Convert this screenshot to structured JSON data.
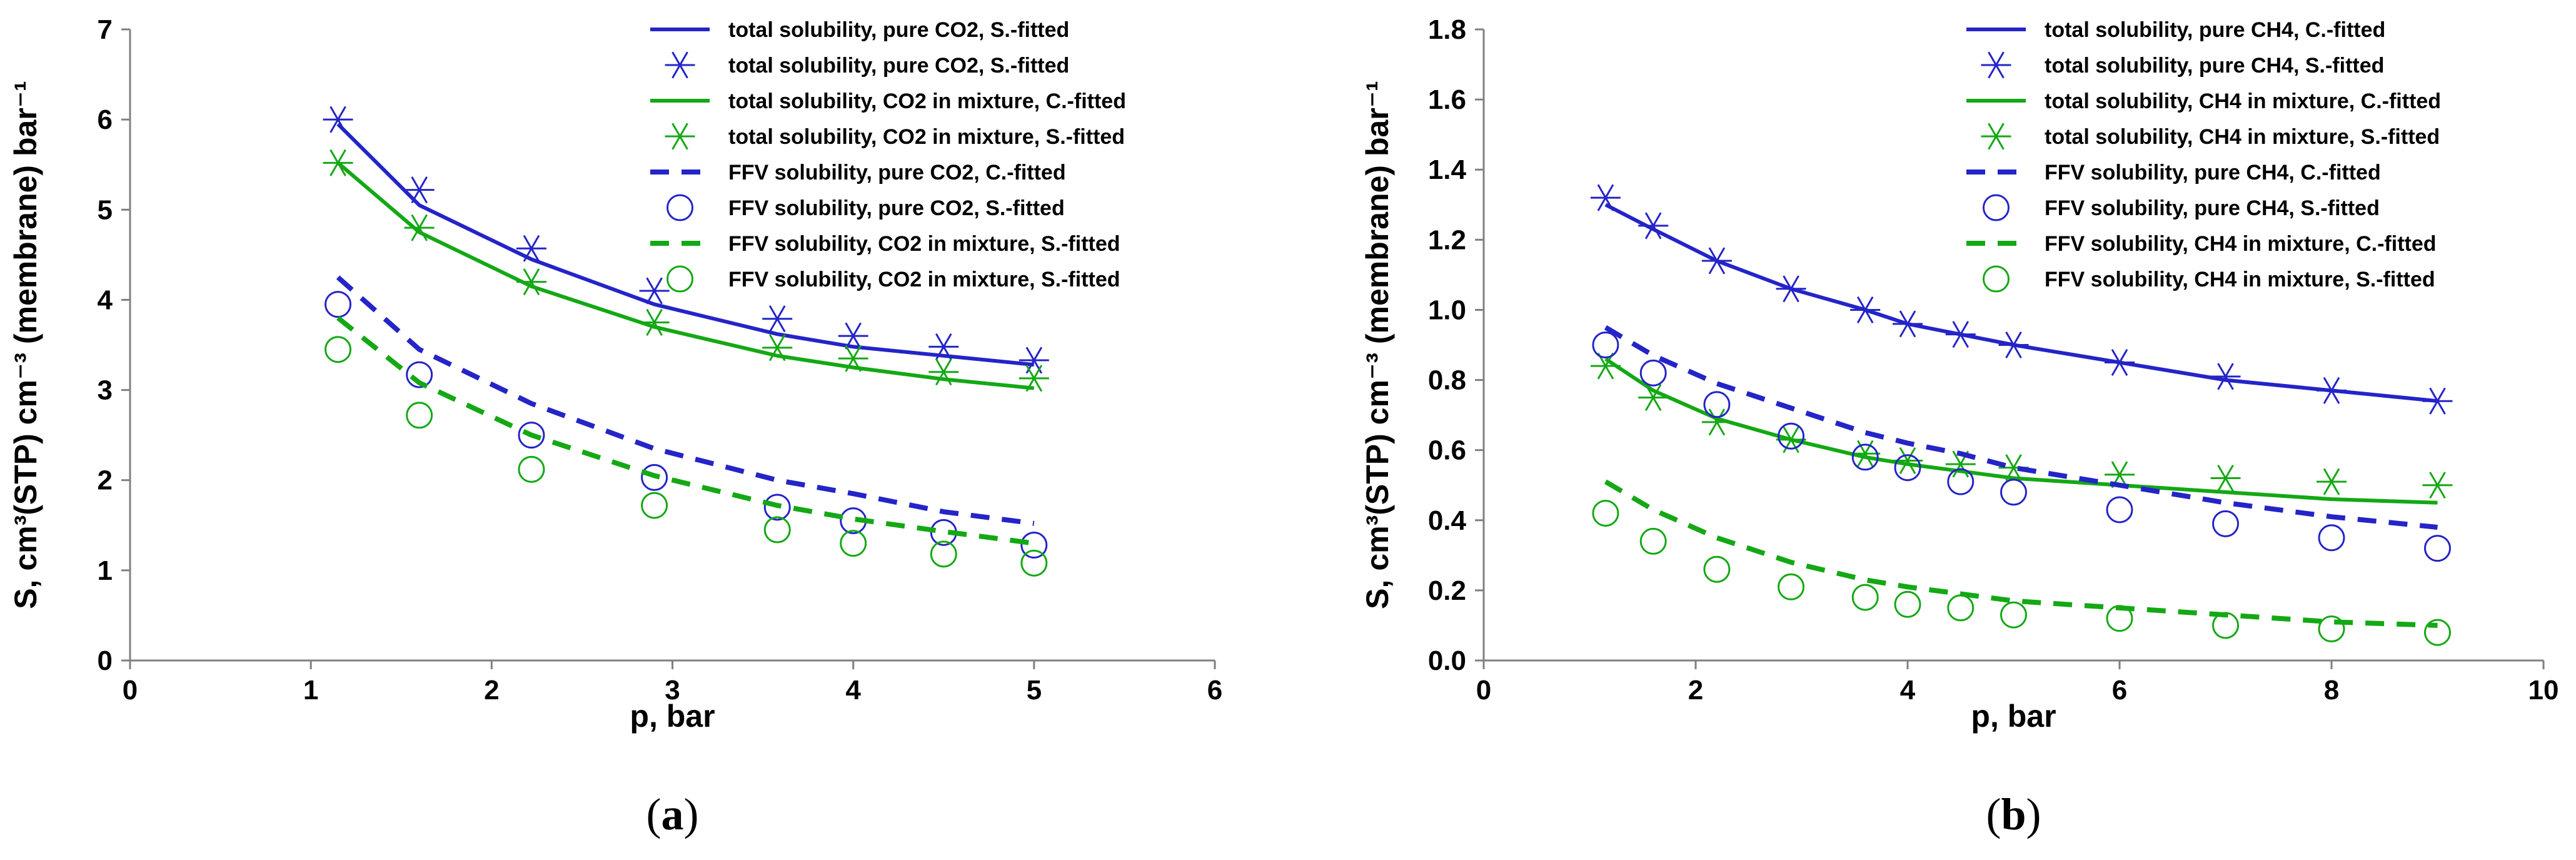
{
  "colors": {
    "blue": "#2424c8",
    "green": "#14a814",
    "axis": "#808080"
  },
  "chart_data": [
    {
      "type": "scatter",
      "panel_label": "(a)",
      "panel_letter": "a",
      "xlabel": "p, bar",
      "ylabel": "S, cm³(STP) cm⁻³ (membrane) bar⁻¹",
      "xlim": [
        0,
        6
      ],
      "ylim": [
        0,
        7
      ],
      "xticks": [
        0,
        1,
        2,
        3,
        4,
        5,
        6
      ],
      "yticks": [
        0,
        1,
        2,
        3,
        4,
        5,
        6,
        7
      ],
      "ytick_labels": [
        "0",
        "1",
        "2",
        "3",
        "4",
        "5",
        "6",
        "7"
      ],
      "legend_position": "top-right",
      "series": [
        {
          "name": "total solubility, pure CO2, S.-fitted",
          "kind": "line",
          "style": "solid",
          "color": "blue",
          "x": [
            1.15,
            1.6,
            2.22,
            2.9,
            3.58,
            4.0,
            4.5,
            5.0
          ],
          "y": [
            5.95,
            5.05,
            4.45,
            3.95,
            3.62,
            3.48,
            3.38,
            3.28
          ]
        },
        {
          "name": "total solubility, pure CO2, S.-fitted",
          "kind": "marker",
          "marker": "asterisk",
          "color": "blue",
          "x": [
            1.15,
            1.6,
            2.22,
            2.9,
            3.58,
            4.0,
            4.5,
            5.0
          ],
          "y": [
            6.0,
            5.22,
            4.57,
            4.1,
            3.79,
            3.6,
            3.48,
            3.33
          ]
        },
        {
          "name": "total solubility, CO2 in mixture, C.-fitted",
          "kind": "line",
          "style": "solid",
          "color": "green",
          "x": [
            1.15,
            1.6,
            2.22,
            2.9,
            3.58,
            4.0,
            4.5,
            5.0
          ],
          "y": [
            5.52,
            4.75,
            4.15,
            3.7,
            3.38,
            3.25,
            3.12,
            3.02
          ]
        },
        {
          "name": "total solubility, CO2 in mixture, S.-fitted",
          "kind": "marker",
          "marker": "asterisk",
          "color": "green",
          "x": [
            1.15,
            1.6,
            2.22,
            2.9,
            3.58,
            4.0,
            4.5,
            5.0
          ],
          "y": [
            5.52,
            4.8,
            4.2,
            3.75,
            3.47,
            3.35,
            3.2,
            3.13
          ]
        },
        {
          "name": "FFV solubility, pure CO2, C.-fitted",
          "kind": "line",
          "style": "dashed",
          "color": "blue",
          "x": [
            1.15,
            1.6,
            2.22,
            2.9,
            3.58,
            4.0,
            4.5,
            5.0
          ],
          "y": [
            4.25,
            3.45,
            2.85,
            2.35,
            2.0,
            1.85,
            1.65,
            1.52
          ]
        },
        {
          "name": "FFV solubility, pure CO2, S.-fitted",
          "kind": "marker",
          "marker": "circle",
          "color": "blue",
          "x": [
            1.15,
            1.6,
            2.22,
            2.9,
            3.58,
            4.0,
            4.5,
            5.0
          ],
          "y": [
            3.95,
            3.17,
            2.5,
            2.03,
            1.7,
            1.55,
            1.42,
            1.28
          ]
        },
        {
          "name": "FFV solubility, CO2 in mixture, S.-fitted",
          "kind": "line",
          "style": "dashed",
          "color": "green",
          "x": [
            1.15,
            1.6,
            2.22,
            2.9,
            3.58,
            4.0,
            4.5,
            5.0
          ],
          "y": [
            3.8,
            3.08,
            2.5,
            2.05,
            1.72,
            1.57,
            1.43,
            1.3
          ]
        },
        {
          "name": "FFV solubility, CO2 in mixture, S.-fitted",
          "kind": "marker",
          "marker": "circle",
          "color": "green",
          "x": [
            1.15,
            1.6,
            2.22,
            2.9,
            3.58,
            4.0,
            4.5,
            5.0
          ],
          "y": [
            3.45,
            2.72,
            2.12,
            1.72,
            1.45,
            1.3,
            1.18,
            1.08
          ]
        }
      ]
    },
    {
      "type": "scatter",
      "panel_label": "(b)",
      "panel_letter": "b",
      "xlabel": "p, bar",
      "ylabel": "S, cm³(STP) cm⁻³ (membrane) bar⁻¹",
      "xlim": [
        0,
        10
      ],
      "ylim": [
        0,
        1.8
      ],
      "xticks": [
        0,
        2,
        4,
        6,
        8,
        10
      ],
      "yticks": [
        0,
        0.2,
        0.4,
        0.6,
        0.8,
        1.0,
        1.2,
        1.4,
        1.6,
        1.8
      ],
      "ytick_labels": [
        "0.0",
        "0.2",
        "0.4",
        "0.6",
        "0.8",
        "1.0",
        "1.2",
        "1.4",
        "1.6",
        "1.8"
      ],
      "legend_position": "top-right",
      "series": [
        {
          "name": "total solubility, pure CH4, C.-fitted",
          "kind": "line",
          "style": "solid",
          "color": "blue",
          "x": [
            1.15,
            1.6,
            2.2,
            2.9,
            3.6,
            4.0,
            4.5,
            5.0,
            6.0,
            7.0,
            8.0,
            9.0
          ],
          "y": [
            1.3,
            1.23,
            1.14,
            1.06,
            1.0,
            0.96,
            0.93,
            0.9,
            0.85,
            0.8,
            0.77,
            0.74
          ]
        },
        {
          "name": "total solubility, pure CH4, S.-fitted",
          "kind": "marker",
          "marker": "asterisk",
          "color": "blue",
          "x": [
            1.15,
            1.6,
            2.2,
            2.9,
            3.6,
            4.0,
            4.5,
            5.0,
            6.0,
            7.0,
            8.0,
            9.0
          ],
          "y": [
            1.32,
            1.24,
            1.14,
            1.06,
            1.0,
            0.96,
            0.93,
            0.9,
            0.85,
            0.81,
            0.77,
            0.74
          ]
        },
        {
          "name": "total solubility, CH4 in mixture, C.-fitted",
          "kind": "line",
          "style": "solid",
          "color": "green",
          "x": [
            1.15,
            1.6,
            2.2,
            2.9,
            3.6,
            4.0,
            4.5,
            5.0,
            6.0,
            7.0,
            8.0,
            9.0
          ],
          "y": [
            0.86,
            0.77,
            0.69,
            0.63,
            0.58,
            0.56,
            0.54,
            0.52,
            0.5,
            0.48,
            0.46,
            0.45
          ]
        },
        {
          "name": "total solubility, CH4 in mixture, S.-fitted",
          "kind": "marker",
          "marker": "asterisk",
          "color": "green",
          "x": [
            1.15,
            1.6,
            2.2,
            2.9,
            3.6,
            4.0,
            4.5,
            5.0,
            6.0,
            7.0,
            8.0,
            9.0
          ],
          "y": [
            0.84,
            0.75,
            0.68,
            0.63,
            0.59,
            0.57,
            0.56,
            0.55,
            0.53,
            0.52,
            0.51,
            0.5
          ]
        },
        {
          "name": "FFV solubility, pure CH4, C.-fitted",
          "kind": "line",
          "style": "dashed",
          "color": "blue",
          "x": [
            1.15,
            1.6,
            2.2,
            2.9,
            3.6,
            4.0,
            4.5,
            5.0,
            6.0,
            7.0,
            8.0,
            9.0
          ],
          "y": [
            0.95,
            0.87,
            0.79,
            0.72,
            0.65,
            0.62,
            0.59,
            0.55,
            0.5,
            0.45,
            0.41,
            0.38
          ]
        },
        {
          "name": "FFV solubility, pure CH4, S.-fitted",
          "kind": "marker",
          "marker": "circle",
          "color": "blue",
          "x": [
            1.15,
            1.6,
            2.2,
            2.9,
            3.6,
            4.0,
            4.5,
            5.0,
            6.0,
            7.0,
            8.0,
            9.0
          ],
          "y": [
            0.9,
            0.82,
            0.73,
            0.64,
            0.58,
            0.55,
            0.51,
            0.48,
            0.43,
            0.39,
            0.35,
            0.32
          ]
        },
        {
          "name": "FFV solubility, CH4 in mixture, C.-fitted",
          "kind": "line",
          "style": "dashed",
          "color": "green",
          "x": [
            1.15,
            1.6,
            2.2,
            2.9,
            3.6,
            4.0,
            4.5,
            5.0,
            6.0,
            7.0,
            8.0,
            9.0
          ],
          "y": [
            0.51,
            0.43,
            0.35,
            0.28,
            0.23,
            0.21,
            0.19,
            0.17,
            0.15,
            0.13,
            0.11,
            0.1
          ]
        },
        {
          "name": "FFV solubility, CH4 in mixture, S.-fitted",
          "kind": "marker",
          "marker": "circle",
          "color": "green",
          "x": [
            1.15,
            1.6,
            2.2,
            2.9,
            3.6,
            4.0,
            4.5,
            5.0,
            6.0,
            7.0,
            8.0,
            9.0
          ],
          "y": [
            0.42,
            0.34,
            0.26,
            0.21,
            0.18,
            0.16,
            0.15,
            0.13,
            0.12,
            0.1,
            0.09,
            0.08
          ]
        }
      ]
    }
  ]
}
